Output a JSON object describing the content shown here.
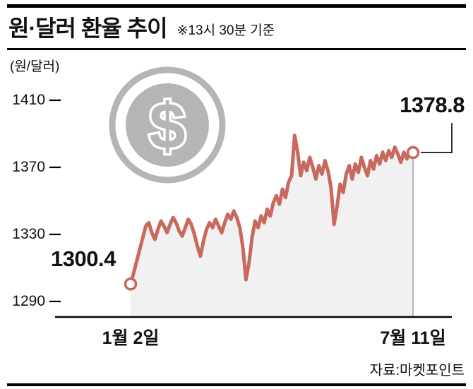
{
  "header": {
    "title": "원·달러 환율 추이",
    "subtitle": "※13시 30분 기준"
  },
  "footer": {
    "source": "자료:마켓포인트"
  },
  "chart_data": {
    "type": "line",
    "title": "원·달러 환율 추이",
    "subtitle_note": "※13시 30분 기준",
    "icon_symbol": "$",
    "y_axis": {
      "unit_label": "(원/달러)",
      "ticks": [
        1290,
        1330,
        1370,
        1410
      ],
      "ylim": [
        1290,
        1410
      ]
    },
    "x_axis": {
      "labels": [
        "1월 2일",
        "7월 11일"
      ]
    },
    "annotations": {
      "start": {
        "label": "1300.4",
        "value": 1300.4
      },
      "end": {
        "label": "1378.8",
        "value": 1378.8
      }
    },
    "colors": {
      "line": "#c8695e",
      "fill": "#f1f1f1",
      "coin": "#b5b5b5",
      "text": "#111111"
    },
    "series": [
      {
        "name": "원·달러 환율",
        "values": [
          1300.4,
          1307,
          1314,
          1321,
          1328,
          1335,
          1337,
          1331,
          1327,
          1333,
          1338,
          1335,
          1331,
          1336,
          1340,
          1337,
          1332,
          1329,
          1334,
          1339,
          1336,
          1330,
          1323,
          1317,
          1326,
          1333,
          1337,
          1334,
          1339,
          1335,
          1331,
          1337,
          1342,
          1339,
          1344,
          1340,
          1334,
          1322,
          1303,
          1313,
          1328,
          1338,
          1334,
          1341,
          1337,
          1345,
          1341,
          1349,
          1353,
          1348,
          1357,
          1352,
          1361,
          1365,
          1389,
          1379,
          1365,
          1373,
          1368,
          1376,
          1370,
          1363,
          1371,
          1366,
          1374,
          1368,
          1358,
          1336,
          1347,
          1360,
          1355,
          1366,
          1371,
          1363,
          1372,
          1367,
          1376,
          1370,
          1365,
          1374,
          1369,
          1377,
          1372,
          1379,
          1374,
          1380,
          1376,
          1382,
          1378,
          1373,
          1379,
          1375,
          1381,
          1378.8
        ]
      }
    ]
  }
}
